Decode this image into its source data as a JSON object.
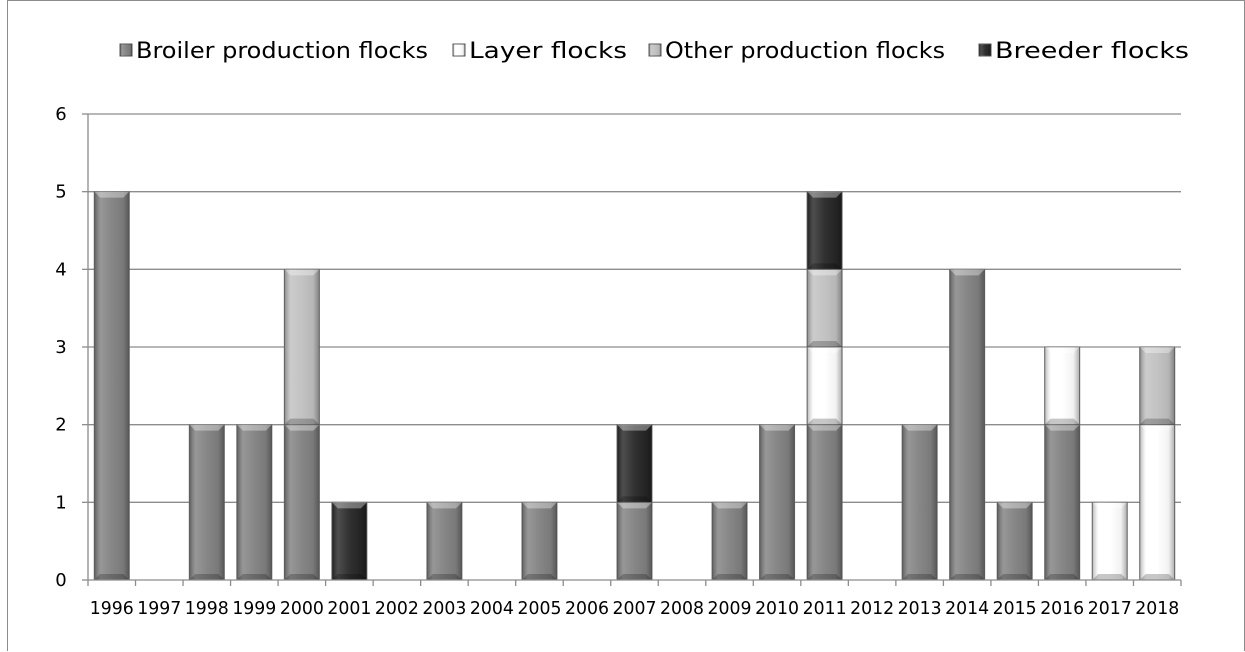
{
  "chart_data": {
    "type": "bar",
    "stacked": true,
    "categories": [
      "1996",
      "1997",
      "1998",
      "1999",
      "2000",
      "2001",
      "2002",
      "2003",
      "2004",
      "2005",
      "2006",
      "2007",
      "2008",
      "2009",
      "2010",
      "2011",
      "2012",
      "2013",
      "2014",
      "2015",
      "2016",
      "2017",
      "2018"
    ],
    "series": [
      {
        "name": "Broiler production flocks",
        "color": "#808080",
        "values": [
          5,
          0,
          2,
          2,
          2,
          0,
          0,
          1,
          0,
          1,
          0,
          1,
          0,
          1,
          2,
          2,
          0,
          2,
          4,
          1,
          2,
          0,
          0
        ]
      },
      {
        "name": "Layer flocks",
        "color": "#ffffff",
        "values": [
          0,
          0,
          0,
          0,
          0,
          0,
          0,
          0,
          0,
          0,
          0,
          0,
          0,
          0,
          0,
          1,
          0,
          0,
          0,
          0,
          1,
          1,
          2
        ]
      },
      {
        "name": "Other production flocks",
        "color": "#c0c0c0",
        "values": [
          0,
          0,
          0,
          0,
          2,
          0,
          0,
          0,
          0,
          0,
          0,
          0,
          0,
          0,
          0,
          1,
          0,
          0,
          0,
          0,
          0,
          0,
          1
        ]
      },
      {
        "name": "Breeder flocks",
        "color": "#262626",
        "values": [
          0,
          0,
          0,
          0,
          0,
          1,
          0,
          0,
          0,
          0,
          0,
          1,
          0,
          0,
          0,
          1,
          0,
          0,
          0,
          0,
          0,
          0,
          0
        ]
      }
    ],
    "ylim": [
      0,
      6
    ],
    "yticks": [
      "0",
      "1",
      "2",
      "3",
      "4",
      "5",
      "6"
    ],
    "grid": true,
    "legend_position": "top",
    "title": "",
    "xlabel": "",
    "ylabel": ""
  }
}
